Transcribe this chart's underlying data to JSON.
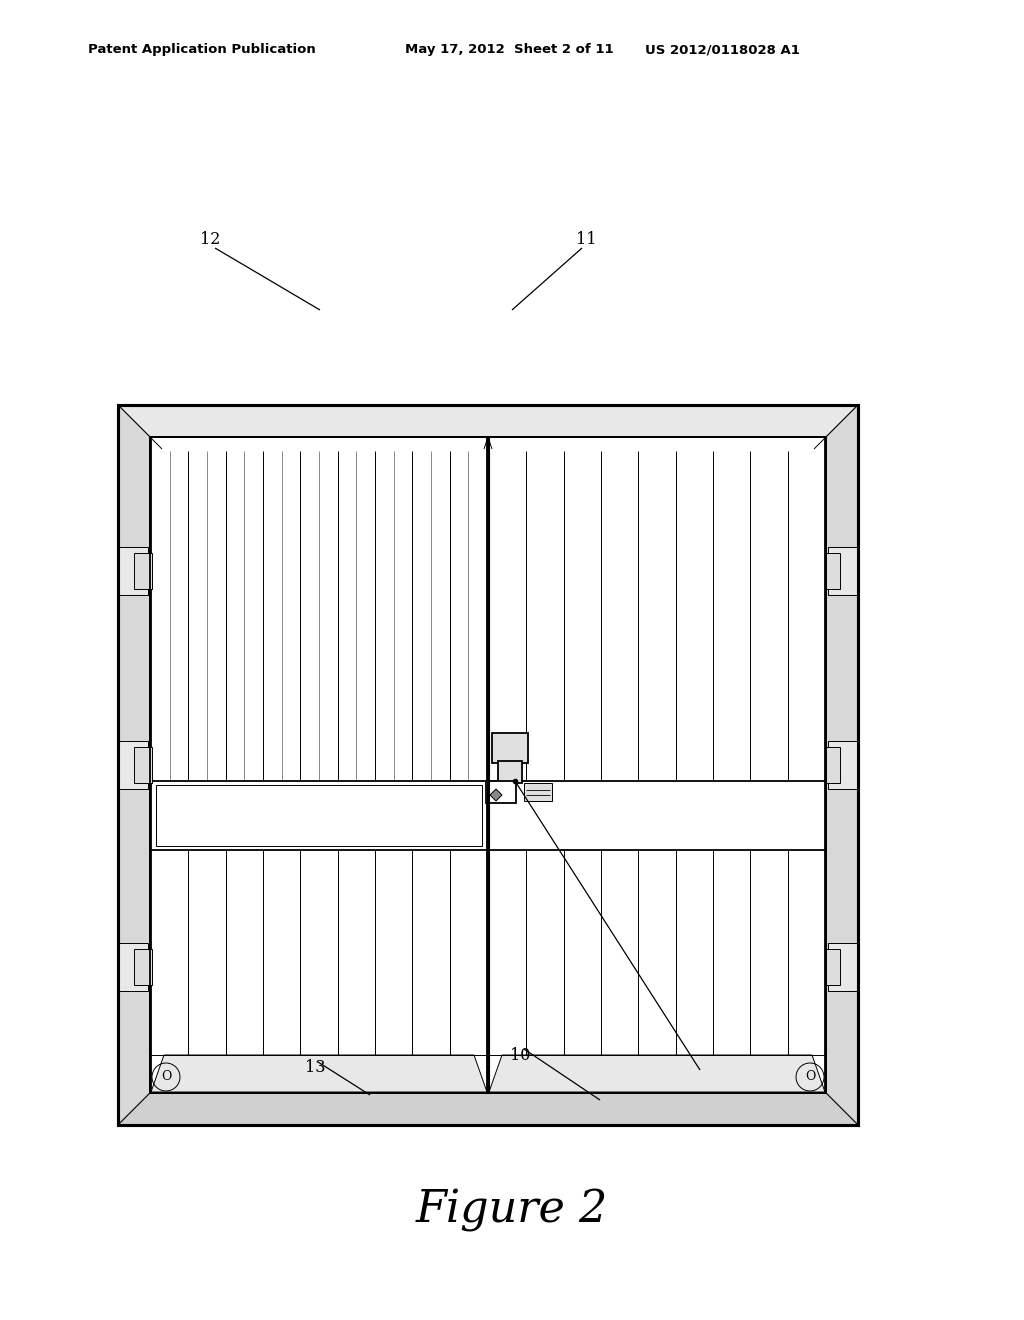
{
  "bg_color": "#ffffff",
  "line_color": "#000000",
  "header_left": "Patent Application Publication",
  "header_mid": "May 17, 2012  Sheet 2 of 11",
  "header_right": "US 2012/0118028 A1",
  "figure_label": "Figure 2",
  "stripe_count": 8,
  "stripe_color_white": "#ffffff",
  "stripe_color_light": "#f0f0f0",
  "frame_face_color": "#e8e8e8",
  "bracket_color": "#e0e0e0"
}
